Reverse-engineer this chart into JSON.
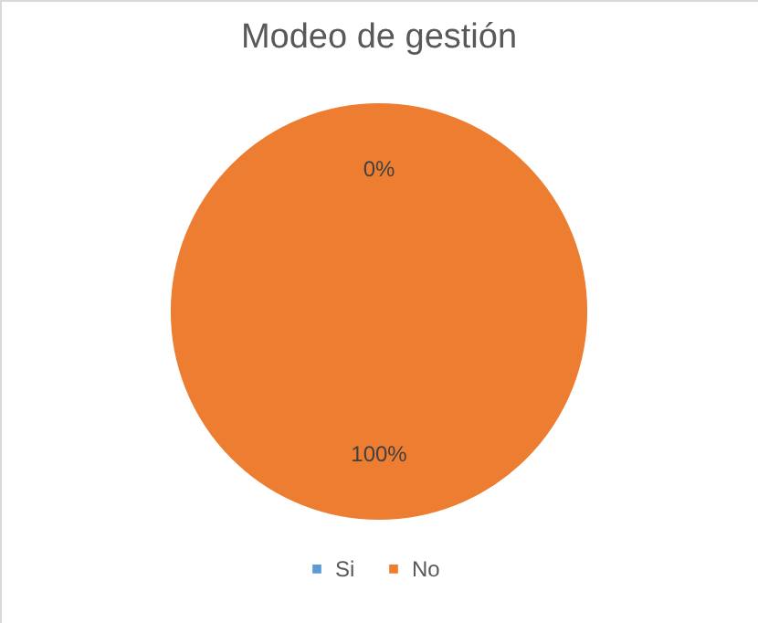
{
  "chart_data": {
    "type": "pie",
    "title": "Modeo de gestión",
    "categories": [
      "Si",
      "No"
    ],
    "values": [
      0,
      100
    ],
    "colors": [
      "#5b9bd5",
      "#ed7d31"
    ],
    "data_labels": true,
    "value_labels": [
      "0%",
      "100%"
    ],
    "legend": "bottom"
  }
}
